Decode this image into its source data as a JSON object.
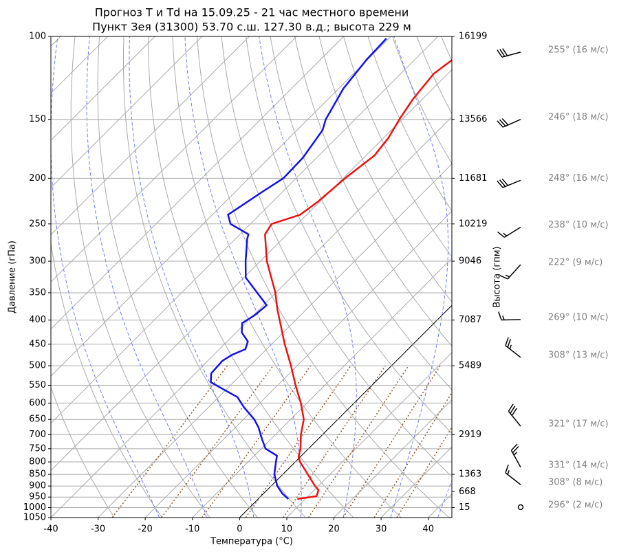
{
  "chart_data": {
    "type": "skewt",
    "title": "Прогноз T и Td на 15.09.25 - 21 час местного времени",
    "subtitle": "Пункт Зея (31300) 53.70 с.ш. 127.30 в.д.; высота 229 м",
    "x_label": "Температура (°C)",
    "y_label": "Давление (гПа)",
    "y2_label": "Высота (гпм)",
    "xlim": [
      -40,
      45
    ],
    "ylim": [
      1050,
      100
    ],
    "yscale": "log",
    "grid": true,
    "xticks": [
      -40,
      -30,
      -20,
      -10,
      0,
      10,
      20,
      30,
      40
    ],
    "yticks": [
      100,
      150,
      200,
      250,
      300,
      350,
      400,
      450,
      500,
      550,
      600,
      650,
      700,
      750,
      800,
      850,
      900,
      950,
      1000,
      1050
    ],
    "height_ticks": [
      {
        "pressure": 100,
        "height": 16199
      },
      {
        "pressure": 150,
        "height": 13566
      },
      {
        "pressure": 200,
        "height": 11681
      },
      {
        "pressure": 250,
        "height": 10219
      },
      {
        "pressure": 300,
        "height": 9046
      },
      {
        "pressure": 400,
        "height": 7087
      },
      {
        "pressure": 500,
        "height": 5489
      },
      {
        "pressure": 700,
        "height": 2919
      },
      {
        "pressure": 850,
        "height": 1363
      },
      {
        "pressure": 925,
        "height": 668
      },
      {
        "pressure": 1000,
        "height": 15
      }
    ],
    "series": [
      {
        "color": "#ee1111",
        "pressure": [
          959,
          946,
          918,
          900,
          850,
          800,
          780,
          750,
          700,
          650,
          600,
          550,
          500,
          450,
          400,
          380,
          350,
          300,
          263,
          250,
          239,
          224,
          200,
          179,
          164,
          150,
          136,
          120,
          112
        ],
        "values": [
          8.3,
          11.8,
          10.9,
          9.3,
          5.3,
          1.0,
          -0.4,
          -1.7,
          -4.6,
          -7.2,
          -11.3,
          -16.2,
          -21.3,
          -27.2,
          -33.4,
          -36.1,
          -40.1,
          -48.6,
          -54.7,
          -55.5,
          -51.4,
          -50.4,
          -49.6,
          -48.2,
          -49.0,
          -50.6,
          -52,
          -53,
          -52
        ]
      },
      {
        "color": "#1111ee",
        "pressure": [
          959,
          933,
          900,
          850,
          800,
          776,
          750,
          718,
          676,
          650,
          613,
          583,
          542,
          519,
          488,
          474,
          461,
          444,
          425,
          406,
          390,
          372,
          325,
          300,
          269,
          263,
          250,
          239,
          214,
          200,
          181,
          158,
          150,
          129,
          112,
          101
        ],
        "values": [
          6.4,
          3.9,
          1.3,
          -1.8,
          -4.1,
          -5.2,
          -9.1,
          -11.7,
          -15.1,
          -17.7,
          -22.4,
          -26.0,
          -34.8,
          -36.6,
          -36.9,
          -36.1,
          -34.5,
          -35.6,
          -38.8,
          -40.7,
          -39.7,
          -39.3,
          -49.6,
          -53.1,
          -57.5,
          -58.2,
          -64.2,
          -66.7,
          -64.3,
          -62.7,
          -62.9,
          -64.6,
          -66.2,
          -69,
          -70.2,
          -70.5
        ]
      }
    ],
    "wind": [
      {
        "pressure": 108,
        "direction": 255,
        "speed": 16,
        "label": "255° (16 м/с)"
      },
      {
        "pressure": 150,
        "direction": 246,
        "speed": 18,
        "label": "246° (18 м/с)"
      },
      {
        "pressure": 202,
        "direction": 248,
        "speed": 16,
        "label": "248° (16 м/с)"
      },
      {
        "pressure": 254,
        "direction": 238,
        "speed": 10,
        "label": "238° (10 м/с)"
      },
      {
        "pressure": 305,
        "direction": 222,
        "speed": 9,
        "label": "222° (9 м/с)"
      },
      {
        "pressure": 399,
        "direction": 269,
        "speed": 10,
        "label": "269° (10 м/с)"
      },
      {
        "pressure": 480,
        "direction": 308,
        "speed": 13,
        "label": "308° (13 м/с)"
      },
      {
        "pressure": 672,
        "direction": 321,
        "speed": 17,
        "label": "321° (17 м/с)"
      },
      {
        "pressure": 821,
        "direction": 331,
        "speed": 14,
        "label": "331° (14 м/с)"
      },
      {
        "pressure": 894,
        "direction": 308,
        "speed": 8,
        "label": "308° (8 м/с)"
      },
      {
        "pressure": 998,
        "direction": 296,
        "speed": 2,
        "label": "296° (2 м/с)"
      }
    ]
  }
}
